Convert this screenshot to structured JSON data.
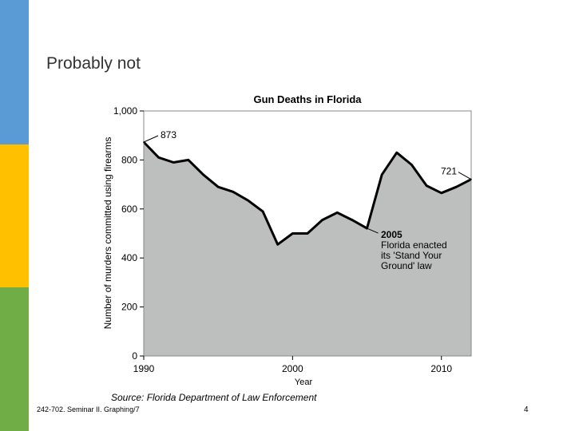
{
  "slide": {
    "title": "Probably not",
    "footer": "242-702. Seminar II. Graphing/7",
    "page_number": "4"
  },
  "chart_data": {
    "type": "area",
    "title": "Gun Deaths in Florida",
    "xlabel": "Year",
    "ylabel": "Number of murders committed using firearms",
    "source": "Source: Florida Department of Law Enforcement",
    "xlim": [
      1990,
      2012
    ],
    "ylim": [
      0,
      1000
    ],
    "xticks": [
      1990,
      2000,
      2010
    ],
    "yticks": [
      0,
      200,
      400,
      600,
      800,
      1000
    ],
    "ytick_labels": [
      "0",
      "200",
      "400",
      "600",
      "800",
      "1,000"
    ],
    "grid": false,
    "x": [
      1990,
      1991,
      1992,
      1993,
      1994,
      1995,
      1996,
      1997,
      1998,
      1999,
      2000,
      2001,
      2002,
      2003,
      2004,
      2005,
      2006,
      2007,
      2008,
      2009,
      2010,
      2011,
      2012
    ],
    "values": [
      873,
      810,
      790,
      800,
      740,
      690,
      670,
      635,
      590,
      455,
      500,
      500,
      555,
      585,
      555,
      521,
      740,
      830,
      780,
      695,
      665,
      690,
      721
    ],
    "annotations": [
      {
        "year": 1990,
        "value": 873,
        "label": "873"
      },
      {
        "year": 2012,
        "value": 721,
        "label": "721"
      },
      {
        "year": 2005,
        "value": 521,
        "label": "2005",
        "lines": [
          "Florida enacted",
          "its 'Stand Your",
          "Ground' law"
        ]
      }
    ],
    "colors": {
      "fill": "#bcbfbe",
      "line": "#000000",
      "title": "#000000"
    }
  }
}
